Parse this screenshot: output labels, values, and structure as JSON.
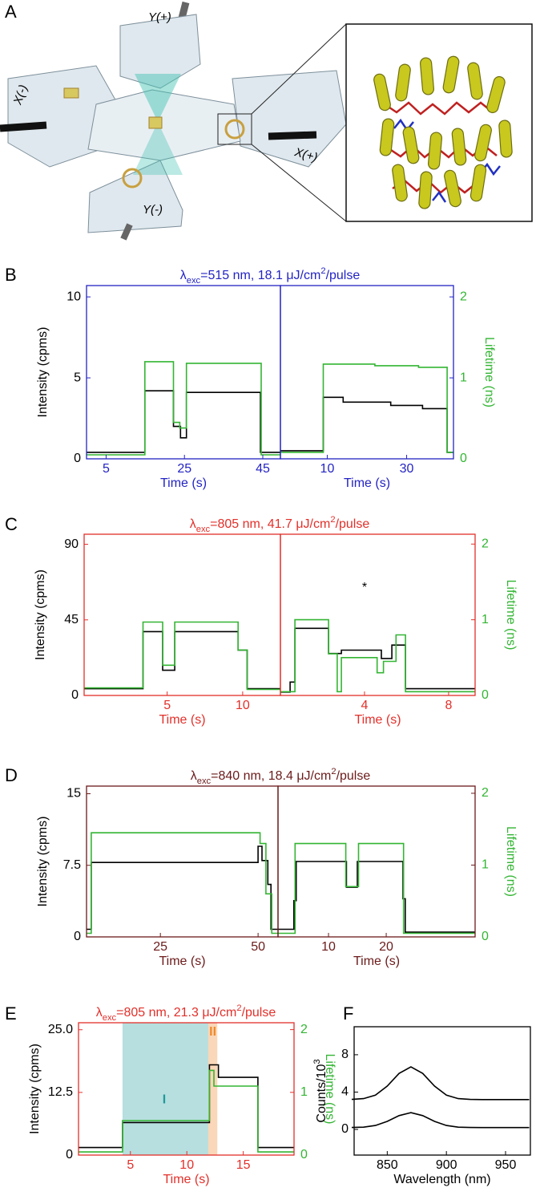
{
  "panel_labels": [
    "A",
    "B",
    "C",
    "D",
    "E",
    "F"
  ],
  "diagram": {
    "labels": [
      "Y(+)",
      "X(-)",
      "X(+)",
      "Y(-)"
    ]
  },
  "chart_data": [
    {
      "type": "line",
      "color": "#2323c4",
      "title": [
        "λ",
        "exc",
        "=515  nm, 18.1 μJ/cm",
        "2",
        "/pulse"
      ],
      "ylabel": "Intensity (cpms)",
      "xlabel": "Time (s)",
      "xlim": [
        0,
        49.5
      ],
      "xticks": [
        5,
        25,
        45
      ],
      "ylim": [
        0,
        10.7
      ],
      "yticks": [
        0,
        5,
        10
      ],
      "y2lim": [
        0,
        2.14
      ],
      "series": [
        {
          "color": "#000000",
          "x": [
            0,
            14.9,
            14.9,
            22.2,
            22.2,
            24,
            24,
            25.5,
            25.5,
            44.4,
            44.4,
            49.5
          ],
          "values": [
            0.4,
            0.4,
            4.2,
            4.2,
            2.0,
            2.0,
            1.3,
            1.3,
            4.1,
            4.1,
            0.4,
            0.4
          ]
        },
        {
          "color": "#33b533",
          "axis": "y2",
          "x": [
            0,
            14.9,
            14.9,
            22.2,
            22.2,
            23.8,
            23.8,
            25.5,
            25.5,
            44.6,
            44.6,
            49.5
          ],
          "values": [
            0.05,
            0.05,
            1.2,
            1.2,
            0.45,
            0.45,
            0.38,
            0.38,
            1.18,
            1.18,
            0.05,
            0.05
          ]
        }
      ]
    },
    {
      "type": "line",
      "color": "#2323c4",
      "xlabel": "Time (s)",
      "y2label": "Lifetime (ns)",
      "xlim": [
        -1.8,
        41.8
      ],
      "xticks": [
        10,
        30
      ],
      "ylim": [
        0,
        10.7
      ],
      "y2lim": [
        0,
        2.14
      ],
      "y2ticks": [
        0,
        1,
        2
      ],
      "series": [
        {
          "color": "#000000",
          "x": [
            -1.8,
            9,
            9,
            14,
            14,
            26,
            26,
            34,
            34,
            40.2,
            40.2,
            41.8
          ],
          "values": [
            0.5,
            0.5,
            3.8,
            3.8,
            3.5,
            3.5,
            3.3,
            3.3,
            3.1,
            3.1,
            0.4,
            0.4
          ]
        },
        {
          "color": "#33b533",
          "axis": "y2",
          "x": [
            -1.8,
            9,
            9,
            22,
            22,
            33,
            33,
            40.2,
            40.2,
            41.8
          ],
          "values": [
            0.08,
            0.08,
            1.17,
            1.17,
            1.15,
            1.15,
            1.13,
            1.13,
            0.08,
            0.08
          ]
        }
      ]
    },
    {
      "type": "line",
      "color": "#e2302a",
      "title": [
        "λ",
        "exc",
        "=805  nm, 41.7 μJ/cm",
        "2",
        "/pulse"
      ],
      "ylabel": "Intensity (cpms)",
      "xlabel": "Time (s)",
      "xlim": [
        -0.5,
        12.5
      ],
      "xticks": [
        5,
        10
      ],
      "ylim": [
        0,
        96
      ],
      "yticks": [
        0,
        45,
        90
      ],
      "y2lim": [
        0,
        2.13
      ],
      "series": [
        {
          "color": "#000000",
          "x": [
            -0.5,
            3.4,
            3.4,
            4.7,
            4.7,
            5.5,
            5.5,
            9.7,
            9.7,
            10.3,
            10.3,
            12.5
          ],
          "values": [
            4,
            4,
            38,
            38,
            15,
            15,
            38,
            38,
            27,
            27,
            4,
            4
          ]
        },
        {
          "color": "#33b533",
          "axis": "y2",
          "x": [
            -0.5,
            3.4,
            3.4,
            4.7,
            4.7,
            5.5,
            5.5,
            9.7,
            9.7,
            10.3,
            10.3,
            12.5
          ],
          "values": [
            0.1,
            0.1,
            0.97,
            0.97,
            0.4,
            0.4,
            0.97,
            0.97,
            0.6,
            0.6,
            0.08,
            0.08
          ]
        }
      ]
    },
    {
      "type": "line",
      "color": "#e2302a",
      "xlabel": "Time (s)",
      "y2label": "Lifetime (ns)",
      "annotation": "*",
      "xlim": [
        0,
        9.26
      ],
      "xticks": [
        4,
        8
      ],
      "ylim": [
        0,
        96
      ],
      "y2lim": [
        0,
        2.13
      ],
      "y2ticks": [
        0,
        1,
        2
      ],
      "series": [
        {
          "color": "#000000",
          "x": [
            0,
            0.46,
            0.46,
            0.69,
            0.69,
            2.29,
            2.29,
            2.9,
            2.9,
            4.8,
            4.8,
            5.3,
            5.3,
            5.95,
            5.95,
            9.26
          ],
          "values": [
            2,
            2,
            8,
            8,
            40,
            40,
            25,
            25,
            27,
            27,
            22,
            22,
            30,
            30,
            4,
            4
          ]
        },
        {
          "color": "#33b533",
          "axis": "y2",
          "x": [
            0,
            0.69,
            0.69,
            2.29,
            2.29,
            2.7,
            2.7,
            2.9,
            2.9,
            4.6,
            4.6,
            4.9,
            4.9,
            5.5,
            5.5,
            5.95,
            5.95,
            9.26
          ],
          "values": [
            0.05,
            0.05,
            1.0,
            1.0,
            0.55,
            0.55,
            0.05,
            0.05,
            0.5,
            0.5,
            0.3,
            0.3,
            0.45,
            0.45,
            0.8,
            0.8,
            0.05,
            0.05
          ]
        }
      ]
    },
    {
      "type": "line",
      "color": "#6b1a1a",
      "title": [
        "λ",
        "exc",
        "=840  nm, 18.4 μJ/cm",
        "2",
        "/pulse"
      ],
      "ylabel": "Intensity (cpms)",
      "xlabel": "Time (s)",
      "xlim": [
        6.1,
        55.1
      ],
      "xticks": [
        25,
        50
      ],
      "ylim": [
        0,
        15.8
      ],
      "yticks": [
        0,
        7.5,
        15
      ],
      "y2lim": [
        0,
        2.1
      ],
      "series": [
        {
          "color": "#000000",
          "x": [
            6.1,
            7.3,
            7.3,
            50,
            50,
            51,
            51,
            52.5,
            52.5,
            53.3,
            53.3,
            55.1
          ],
          "values": [
            0.8,
            0.8,
            7.8,
            7.8,
            9.5,
            9.5,
            8,
            8,
            5.5,
            5.5,
            0.8,
            0.8
          ]
        },
        {
          "color": "#33b533",
          "axis": "y2",
          "x": [
            6.1,
            7.3,
            7.3,
            50.5,
            50.5,
            52,
            52,
            53.5,
            53.5,
            55.1
          ],
          "values": [
            0.05,
            0.05,
            1.45,
            1.45,
            1.3,
            1.3,
            0.6,
            0.6,
            0.05,
            0.05
          ]
        }
      ]
    },
    {
      "type": "line",
      "color": "#6b1a1a",
      "xlabel": "Time (s)",
      "y2label": "Lifetime (ns)",
      "xlim": [
        1.25,
        35.4
      ],
      "xticks": [
        10,
        20
      ],
      "ylim": [
        0,
        15.8
      ],
      "y2lim": [
        0,
        2.1
      ],
      "y2ticks": [
        0,
        1,
        2
      ],
      "series": [
        {
          "color": "#000000",
          "x": [
            1.25,
            4,
            4,
            4.4,
            4.4,
            13.1,
            13.1,
            15,
            15,
            22.9,
            22.9,
            23.3,
            23.3,
            35.4
          ],
          "values": [
            0.8,
            0.8,
            3.8,
            3.8,
            7.9,
            7.9,
            5.2,
            5.2,
            7.9,
            7.9,
            4,
            4,
            0.5,
            0.5
          ]
        },
        {
          "color": "#33b533",
          "axis": "y2",
          "x": [
            1.25,
            4.2,
            4.2,
            13,
            13,
            15.2,
            15.2,
            23,
            23,
            35.4
          ],
          "values": [
            0.05,
            0.05,
            1.3,
            1.3,
            0.7,
            0.7,
            1.3,
            1.3,
            0.05,
            0.05
          ]
        }
      ]
    },
    {
      "type": "line",
      "color": "#e2302a",
      "title": [
        "λ",
        "exc",
        "=805  nm, 21.3 μJ/cm",
        "2",
        "/pulse"
      ],
      "ylabel": "Intensity (cpms)",
      "xlabel": "Time (s)",
      "y2label": "Lifetime (ns)",
      "annotations": [
        {
          "text": "I",
          "color": "#1f9a9a"
        },
        {
          "text": "II",
          "color": "#f08a2a"
        }
      ],
      "spans": [
        {
          "x": [
            4.3,
            11.9
          ],
          "color": "#9fd4d4"
        },
        {
          "x": [
            11.9,
            12.7
          ],
          "color": "#f8c9a0"
        }
      ],
      "xlim": [
        0.4,
        19.5
      ],
      "xticks": [
        5,
        10,
        15
      ],
      "ylim": [
        0,
        26.4
      ],
      "yticks": [
        0,
        12.5,
        {
          "value": 25,
          "label": "25.0"
        }
      ],
      "y2lim": [
        0,
        2.11
      ],
      "y2ticks": [
        0,
        1,
        2
      ],
      "series": [
        {
          "color": "#000000",
          "x": [
            0.4,
            4.3,
            4.3,
            12,
            12,
            12.8,
            12.8,
            16.3,
            16.3,
            19.5
          ],
          "values": [
            1.5,
            1.5,
            6.5,
            6.5,
            18,
            18,
            15.5,
            15.5,
            1.5,
            1.5
          ]
        },
        {
          "color": "#33b533",
          "axis": "y2",
          "x": [
            0.4,
            4.3,
            4.3,
            12,
            12,
            12.4,
            12.4,
            16.3,
            16.3,
            19.5
          ],
          "values": [
            0.05,
            0.05,
            0.55,
            0.55,
            1.35,
            1.35,
            1.1,
            1.1,
            0.05,
            0.05
          ]
        }
      ]
    },
    {
      "type": "line",
      "color": "#000000",
      "ylabel": [
        "Counts/10",
        "3"
      ],
      "xlabel": "Wavelength (nm)",
      "xlim": [
        822,
        971
      ],
      "xticks": [
        850,
        900,
        950
      ],
      "ylim": [
        -2.75,
        11
      ],
      "yticks": [
        0,
        4,
        8
      ],
      "series": [
        {
          "color": "#000000",
          "x": [
            820,
            830,
            840,
            850,
            860,
            870,
            880,
            890,
            900,
            910,
            920,
            930,
            940,
            950,
            960,
            970
          ],
          "values": [
            3.21,
            3.3,
            3.67,
            4.64,
            6.0,
            6.7,
            6.0,
            4.64,
            3.67,
            3.3,
            3.21,
            3.2,
            3.2,
            3.2,
            3.2,
            3.2
          ]
        },
        {
          "color": "#000000",
          "x": [
            820,
            830,
            840,
            850,
            860,
            870,
            880,
            890,
            900,
            910,
            920,
            930,
            940,
            950,
            960,
            970
          ],
          "values": [
            0.21,
            0.24,
            0.42,
            0.86,
            1.48,
            1.8,
            1.48,
            0.86,
            0.42,
            0.24,
            0.21,
            0.2,
            0.2,
            0.2,
            0.2,
            0.2
          ]
        }
      ]
    }
  ]
}
